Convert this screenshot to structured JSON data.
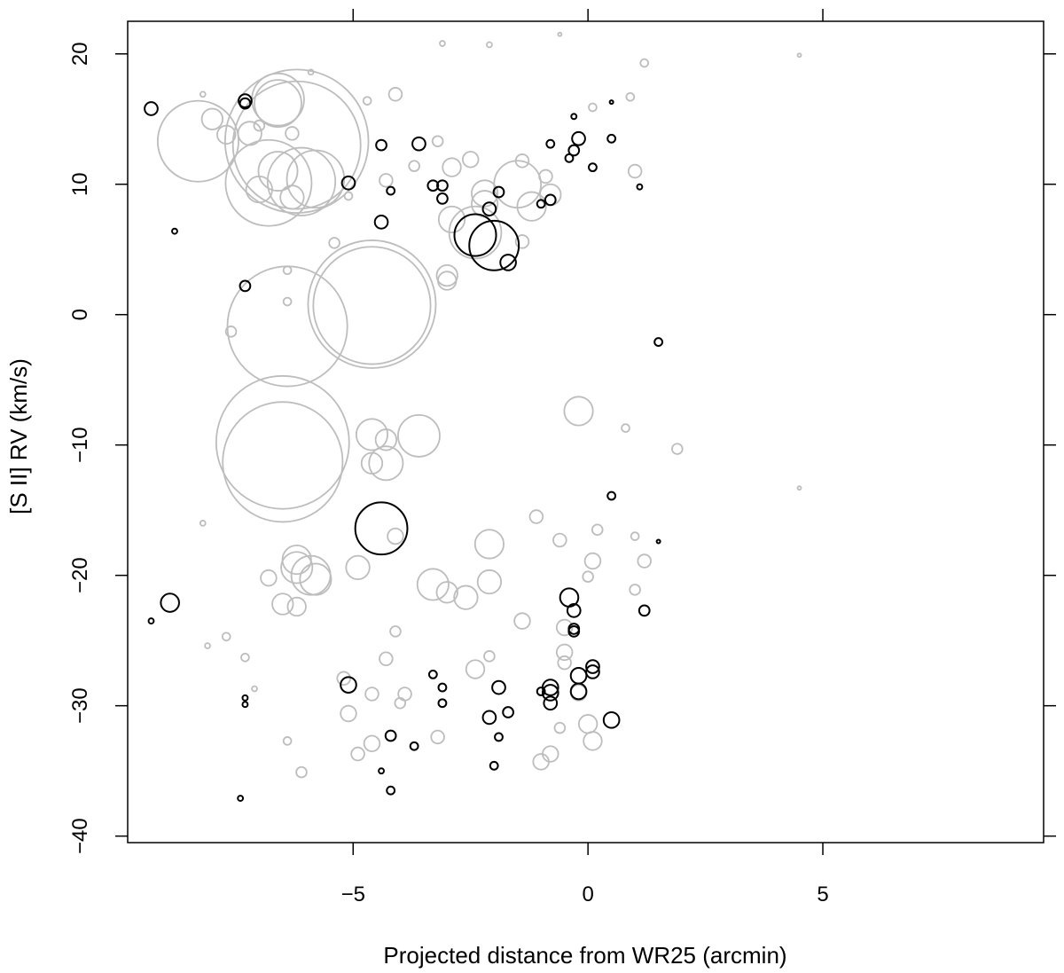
{
  "chart_data": {
    "type": "scatter",
    "title": "",
    "xlabel": "Projected distance from WR25 (arcmin)",
    "ylabel": "[S II] RV (km/s)",
    "xlim": [
      -9.8,
      9.7
    ],
    "ylim": [
      -40.5,
      22.5
    ],
    "x_ticks": [
      -5,
      0,
      5
    ],
    "x_tick_labels": [
      "−5",
      "0",
      "5"
    ],
    "y_ticks": [
      -40,
      -30,
      -20,
      -10,
      0,
      10,
      20
    ],
    "y_tick_labels": [
      "−40",
      "−30",
      "−20",
      "−10",
      "0",
      "10",
      "20"
    ],
    "grid": false,
    "legend": "none",
    "marker": "open-circle",
    "size_encoding": "circle radius (unlabeled)",
    "colors": {
      "gray_series": "#bdbdbd",
      "black_series": "#000000",
      "frame": "#000000"
    },
    "series": [
      {
        "color": "gray",
        "points": [
          [
            -8.3,
            13.3,
            3.1
          ],
          [
            -6.6,
            16.5,
            2.0
          ],
          [
            -6.6,
            16.2,
            1.8
          ],
          [
            -6.2,
            13.3,
            5.5
          ],
          [
            -6.2,
            13.0,
            4.9
          ],
          [
            -6.8,
            10.1,
            3.3
          ],
          [
            -6.1,
            10.2,
            2.6
          ],
          [
            -5.8,
            10.4,
            2.2
          ],
          [
            -7.0,
            9.6,
            1.0
          ],
          [
            -6.6,
            11.0,
            1.5
          ],
          [
            -7.2,
            13.9,
            0.9
          ],
          [
            -7.7,
            13.8,
            0.7
          ],
          [
            -8.0,
            15.0,
            0.8
          ],
          [
            -6.3,
            13.9,
            0.5
          ],
          [
            -6.3,
            9.0,
            0.9
          ],
          [
            -5.9,
            18.6,
            0.2
          ],
          [
            -8.2,
            16.9,
            0.2
          ],
          [
            -7.0,
            14.5,
            0.4
          ],
          [
            -6.4,
            3.4,
            0.3
          ],
          [
            -6.4,
            1.0,
            0.3
          ],
          [
            -6.4,
            -0.9,
            4.6
          ],
          [
            -4.6,
            0.8,
            4.9
          ],
          [
            -4.6,
            0.7,
            4.5
          ],
          [
            -7.6,
            -1.3,
            0.4
          ],
          [
            -6.5,
            -9.8,
            5.1
          ],
          [
            -6.5,
            -11.3,
            4.6
          ],
          [
            -4.6,
            -9.2,
            1.2
          ],
          [
            -4.3,
            -9.6,
            0.8
          ],
          [
            -3.6,
            -9.3,
            1.6
          ],
          [
            -4.6,
            -11.4,
            0.8
          ],
          [
            -4.3,
            -11.4,
            1.3
          ],
          [
            -4.1,
            -17.0,
            0.6
          ],
          [
            -6.2,
            -18.8,
            1.1
          ],
          [
            -6.2,
            -19.4,
            1.2
          ],
          [
            -5.9,
            -20.0,
            1.5
          ],
          [
            -5.8,
            -20.3,
            1.2
          ],
          [
            -6.8,
            -20.2,
            0.6
          ],
          [
            -6.5,
            -22.2,
            0.8
          ],
          [
            -6.2,
            -22.4,
            0.7
          ],
          [
            -4.9,
            -19.4,
            0.9
          ],
          [
            -3.3,
            -20.7,
            1.2
          ],
          [
            -3.0,
            -21.3,
            0.8
          ],
          [
            -2.6,
            -21.7,
            0.9
          ],
          [
            -2.1,
            -20.5,
            0.9
          ],
          [
            -2.1,
            -17.6,
            1.1
          ],
          [
            -3.0,
            2.6,
            0.7
          ],
          [
            -3.0,
            3.0,
            0.8
          ],
          [
            -2.4,
            6.3,
            2.0
          ],
          [
            -2.2,
            8.5,
            1.0
          ],
          [
            -1.5,
            10.0,
            1.8
          ],
          [
            -1.2,
            8.3,
            1.1
          ],
          [
            -0.8,
            9.2,
            0.8
          ],
          [
            -1.4,
            5.6,
            0.5
          ],
          [
            -2.9,
            11.3,
            0.7
          ],
          [
            -2.5,
            11.9,
            0.6
          ],
          [
            -0.2,
            -7.4,
            1.1
          ],
          [
            0.8,
            -8.7,
            0.3
          ],
          [
            1.9,
            -10.3,
            0.4
          ],
          [
            4.5,
            -13.3,
            0.1
          ],
          [
            0.2,
            -16.5,
            0.4
          ],
          [
            1.0,
            -17.0,
            0.3
          ],
          [
            1.2,
            -18.9,
            0.5
          ],
          [
            1.0,
            -21.1,
            0.4
          ],
          [
            0.1,
            -18.9,
            0.6
          ],
          [
            0.0,
            -20.1,
            0.4
          ],
          [
            -1.1,
            -15.5,
            0.5
          ],
          [
            -0.6,
            -17.3,
            0.5
          ],
          [
            -0.5,
            -24.0,
            0.6
          ],
          [
            -1.4,
            -23.5,
            0.6
          ],
          [
            0.0,
            -31.4,
            0.7
          ],
          [
            0.1,
            -32.7,
            0.7
          ],
          [
            -0.2,
            -29.0,
            0.6
          ],
          [
            -0.5,
            -25.9,
            0.6
          ],
          [
            -0.5,
            -26.7,
            0.5
          ],
          [
            -1.0,
            -34.3,
            0.6
          ],
          [
            -0.8,
            -33.7,
            0.6
          ],
          [
            -0.6,
            -31.7,
            0.4
          ],
          [
            -2.1,
            -26.2,
            0.4
          ],
          [
            -2.4,
            -27.2,
            0.7
          ],
          [
            -4.3,
            -26.4,
            0.5
          ],
          [
            -4.1,
            -24.3,
            0.4
          ],
          [
            -4.6,
            -29.1,
            0.5
          ],
          [
            -4.6,
            -32.9,
            0.6
          ],
          [
            -4.9,
            -33.7,
            0.5
          ],
          [
            -5.1,
            -30.6,
            0.6
          ],
          [
            -5.2,
            -27.9,
            0.5
          ],
          [
            -4.0,
            -29.8,
            0.4
          ],
          [
            -3.9,
            -29.1,
            0.5
          ],
          [
            -3.2,
            -32.4,
            0.5
          ],
          [
            -6.1,
            -35.1,
            0.4
          ],
          [
            -6.4,
            -32.7,
            0.3
          ],
          [
            -7.1,
            -28.7,
            0.2
          ],
          [
            -7.3,
            -26.3,
            0.3
          ],
          [
            -7.7,
            -24.7,
            0.3
          ],
          [
            -8.1,
            -25.4,
            0.2
          ],
          [
            -8.2,
            -16.0,
            0.2
          ],
          [
            -5.4,
            5.5,
            0.4
          ],
          [
            -5.1,
            9.1,
            0.3
          ],
          [
            -4.1,
            16.9,
            0.5
          ],
          [
            -4.7,
            16.4,
            0.3
          ],
          [
            -3.1,
            20.8,
            0.2
          ],
          [
            -2.1,
            20.7,
            0.2
          ],
          [
            -0.6,
            21.5,
            0.1
          ],
          [
            1.2,
            19.3,
            0.3
          ],
          [
            4.5,
            19.9,
            0.1
          ],
          [
            -3.2,
            13.3,
            0.4
          ],
          [
            0.9,
            16.7,
            0.3
          ],
          [
            1.0,
            11.0,
            0.5
          ],
          [
            0.1,
            15.9,
            0.3
          ],
          [
            -1.4,
            11.8,
            0.5
          ],
          [
            -0.9,
            10.6,
            0.5
          ],
          [
            -2.2,
            9.3,
            1.0
          ],
          [
            -2.9,
            7.3,
            1.0
          ],
          [
            -3.7,
            11.4,
            0.4
          ],
          [
            -4.3,
            10.3,
            0.5
          ]
        ]
      },
      {
        "color": "black",
        "points": [
          [
            -9.3,
            15.8,
            0.5
          ],
          [
            -7.3,
            16.4,
            0.5
          ],
          [
            -7.3,
            16.2,
            0.4
          ],
          [
            -4.4,
            13.0,
            0.4
          ],
          [
            -3.6,
            13.1,
            0.5
          ],
          [
            -5.1,
            10.1,
            0.5
          ],
          [
            -4.2,
            9.5,
            0.3
          ],
          [
            -3.3,
            9.9,
            0.4
          ],
          [
            -3.1,
            9.9,
            0.4
          ],
          [
            -3.1,
            8.9,
            0.4
          ],
          [
            -4.4,
            7.1,
            0.5
          ],
          [
            -8.8,
            6.4,
            0.2
          ],
          [
            -7.3,
            2.2,
            0.4
          ],
          [
            -2.4,
            6.1,
            1.6
          ],
          [
            -2.0,
            5.3,
            1.9
          ],
          [
            -1.7,
            4.0,
            0.6
          ],
          [
            -2.1,
            8.1,
            0.5
          ],
          [
            -1.9,
            9.4,
            0.4
          ],
          [
            -1.0,
            8.5,
            0.3
          ],
          [
            -0.8,
            8.8,
            0.4
          ],
          [
            -0.8,
            13.1,
            0.3
          ],
          [
            -0.2,
            13.5,
            0.5
          ],
          [
            -0.3,
            15.2,
            0.2
          ],
          [
            0.5,
            16.3,
            0.1
          ],
          [
            0.5,
            13.5,
            0.3
          ],
          [
            -0.3,
            12.6,
            0.4
          ],
          [
            0.1,
            11.3,
            0.3
          ],
          [
            1.1,
            9.8,
            0.2
          ],
          [
            -0.4,
            12.0,
            0.3
          ],
          [
            1.5,
            -2.1,
            0.3
          ],
          [
            0.5,
            -13.9,
            0.3
          ],
          [
            1.5,
            -17.4,
            0.1
          ],
          [
            -4.4,
            -16.4,
            2.0
          ],
          [
            -9.3,
            -23.5,
            0.2
          ],
          [
            -8.9,
            -22.1,
            0.7
          ],
          [
            -5.1,
            -28.4,
            0.6
          ],
          [
            -7.3,
            -29.4,
            0.2
          ],
          [
            -7.3,
            -29.9,
            0.2
          ],
          [
            -7.4,
            -37.1,
            0.2
          ],
          [
            -3.3,
            -27.6,
            0.3
          ],
          [
            -3.1,
            -28.6,
            0.3
          ],
          [
            -3.1,
            -29.8,
            0.3
          ],
          [
            -3.7,
            -33.1,
            0.3
          ],
          [
            -4.2,
            -32.3,
            0.4
          ],
          [
            -4.4,
            -35.0,
            0.2
          ],
          [
            -4.2,
            -36.5,
            0.3
          ],
          [
            -2.1,
            -30.9,
            0.5
          ],
          [
            -1.9,
            -32.4,
            0.3
          ],
          [
            -1.7,
            -30.5,
            0.4
          ],
          [
            -2.0,
            -34.6,
            0.3
          ],
          [
            -1.9,
            -28.6,
            0.5
          ],
          [
            -0.8,
            -28.6,
            0.6
          ],
          [
            -0.8,
            -29.0,
            0.6
          ],
          [
            -0.8,
            -29.8,
            0.5
          ],
          [
            -0.3,
            -22.7,
            0.5
          ],
          [
            -0.4,
            -21.7,
            0.7
          ],
          [
            -0.3,
            -24.1,
            0.4
          ],
          [
            -0.3,
            -24.3,
            0.4
          ],
          [
            -0.2,
            -27.7,
            0.6
          ],
          [
            -0.2,
            -28.9,
            0.6
          ],
          [
            0.1,
            -27.0,
            0.5
          ],
          [
            0.1,
            -27.4,
            0.5
          ],
          [
            0.5,
            -31.1,
            0.6
          ],
          [
            1.2,
            -22.7,
            0.4
          ],
          [
            -1.0,
            -28.9,
            0.3
          ]
        ]
      }
    ]
  }
}
